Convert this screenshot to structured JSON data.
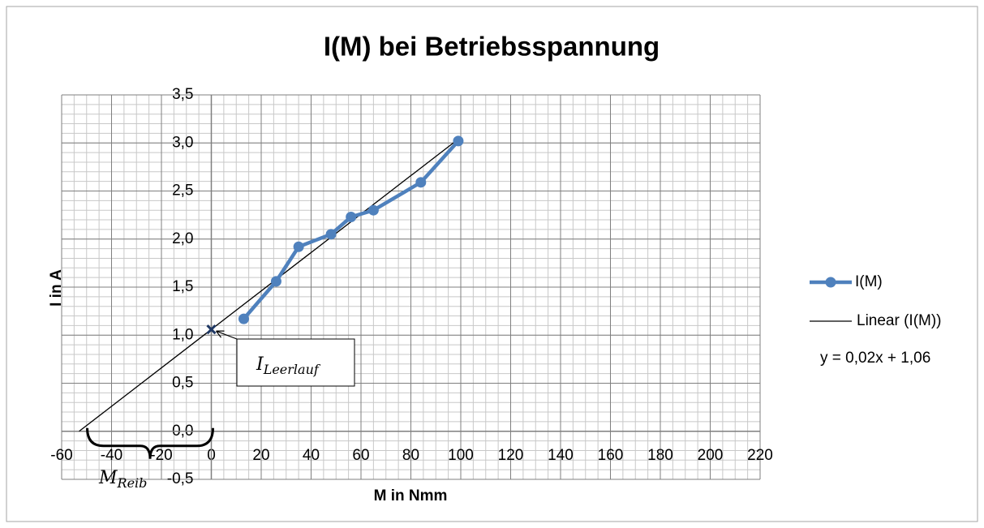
{
  "chart_data": {
    "type": "line",
    "title": "I(M) bei Betriebsspannung",
    "xlabel": "M in Nmm",
    "ylabel": "I in A",
    "xlim": [
      -60,
      220
    ],
    "xticks": [
      -60,
      -40,
      -20,
      0,
      20,
      40,
      60,
      80,
      100,
      120,
      140,
      160,
      180,
      200,
      220
    ],
    "ylim": [
      -0.5,
      3.5
    ],
    "yticks": [
      {
        "value": -0.5,
        "label": "-0,5"
      },
      {
        "value": 0,
        "label": "0,0"
      },
      {
        "value": 0.5,
        "label": "0,5"
      },
      {
        "value": 1,
        "label": "1,0"
      },
      {
        "value": 1.5,
        "label": "1,5"
      },
      {
        "value": 2,
        "label": "2,0"
      },
      {
        "value": 2.5,
        "label": "2,5"
      },
      {
        "value": 3,
        "label": "3,0"
      },
      {
        "value": 3.5,
        "label": "3,5"
      }
    ],
    "grid": true,
    "x_minor_step": 5,
    "y_minor_step": 0.1,
    "legend": "right",
    "series": [
      {
        "name": "I(M)",
        "color": "#4f81bd",
        "x": [
          13,
          26,
          35,
          48,
          56,
          65,
          84,
          99
        ],
        "values": [
          1.17,
          1.56,
          1.92,
          2.05,
          2.23,
          2.3,
          2.59,
          3.02
        ]
      }
    ],
    "trendline": {
      "name": "Linear (I(M))",
      "color": "#000000",
      "slope": 0.02,
      "intercept": 1.06,
      "x_range": [
        -53,
        99
      ],
      "label": "y = 0,02x + 1,06"
    },
    "annotations": [
      {
        "text": "I",
        "subscript": "Leerlauf"
      },
      {
        "text": "M",
        "subscript": "Reib"
      }
    ]
  }
}
